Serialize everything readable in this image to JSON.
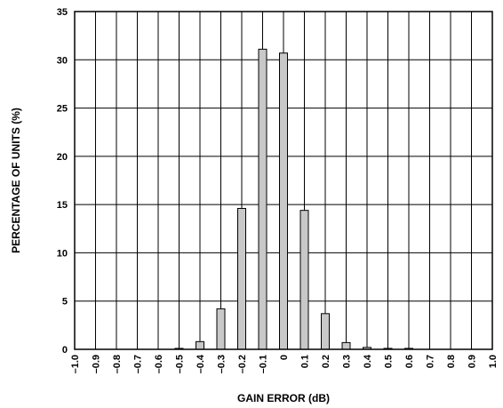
{
  "chart_data": {
    "type": "bar",
    "xlabel": "GAIN ERROR (dB)",
    "ylabel": "PERCENTAGE OF UNITS (%)",
    "ylim": [
      0,
      35
    ],
    "yticks": [
      0,
      5,
      10,
      15,
      20,
      25,
      30,
      35
    ],
    "ytick_labels": [
      "0",
      "5",
      "10",
      "15",
      "20",
      "25",
      "30",
      "35"
    ],
    "xlim": [
      -1.0,
      1.0
    ],
    "xtick_labels": [
      "–1.0",
      "–0.9",
      "–0.8",
      "–0.7",
      "–0.6",
      "–0.5",
      "–0.4",
      "–0.3",
      "–0.2",
      "–0.1",
      "0",
      "0.1",
      "0.2",
      "0.3",
      "0.4",
      "0.5",
      "0.6",
      "0.7",
      "0.8",
      "0.9",
      "1.0"
    ],
    "grid": true,
    "bar_color": "#c8c8c8",
    "categories": [
      "-0.5",
      "-0.4",
      "-0.3",
      "-0.2",
      "-0.1",
      "0",
      "0.1",
      "0.2",
      "0.3",
      "0.4",
      "0.5",
      "0.6"
    ],
    "x": [
      -0.5,
      -0.4,
      -0.3,
      -0.2,
      -0.1,
      0.0,
      0.1,
      0.2,
      0.3,
      0.4,
      0.5,
      0.6
    ],
    "values": [
      0.1,
      0.8,
      4.2,
      14.6,
      31.1,
      30.7,
      14.4,
      3.7,
      0.7,
      0.2,
      0.1,
      0.1
    ]
  }
}
